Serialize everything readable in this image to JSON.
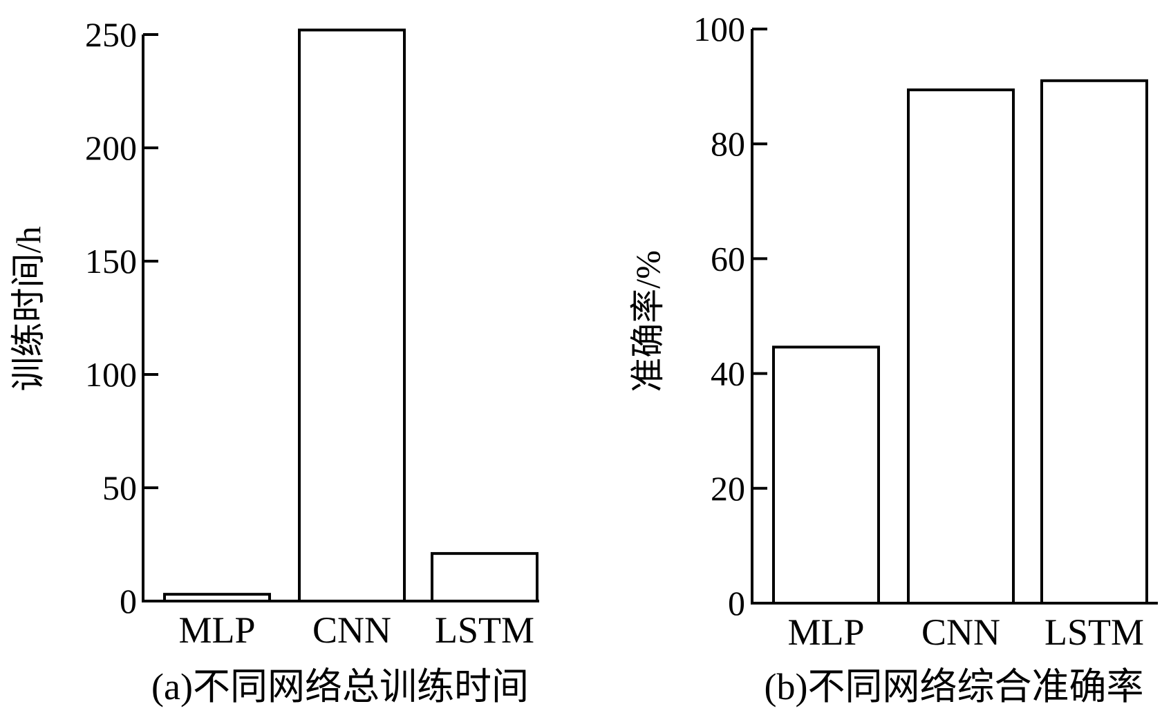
{
  "chart_data": [
    {
      "type": "bar",
      "caption": "(a)不同网络总训练时间",
      "ylabel": "训练时间/h",
      "xlabel": "",
      "categories": [
        "MLP",
        "CNN",
        "LSTM"
      ],
      "values": [
        3,
        252,
        21
      ],
      "ylim": [
        0,
        250
      ],
      "yticks": [
        0,
        50,
        100,
        150,
        200,
        250
      ],
      "grid": false,
      "bar_fill": "#ffffff",
      "bar_stroke": "#000000"
    },
    {
      "type": "bar",
      "caption": "(b)不同网络综合准确率",
      "ylabel": "准确率/%",
      "xlabel": "",
      "categories": [
        "MLP",
        "CNN",
        "LSTM"
      ],
      "values": [
        44.6,
        89.4,
        91.0
      ],
      "ylim": [
        0,
        100
      ],
      "yticks": [
        0,
        20,
        40,
        60,
        80,
        100
      ],
      "grid": false,
      "bar_fill": "#ffffff",
      "bar_stroke": "#000000"
    }
  ]
}
